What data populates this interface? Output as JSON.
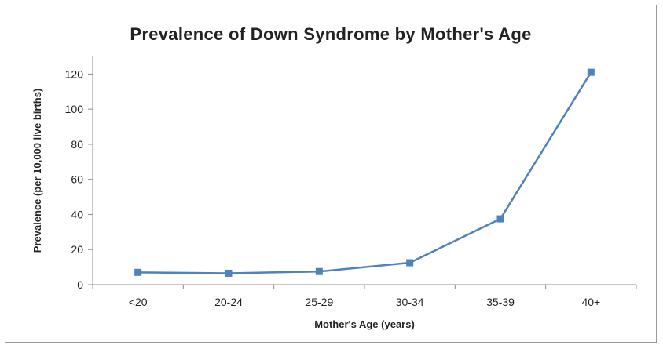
{
  "chart_data": {
    "type": "line",
    "title": "Prevalence of Down Syndrome by Mother's Age",
    "xlabel": "Mother's Age (years)",
    "ylabel": "Prevalence  (per 10,000 live births)",
    "categories": [
      "<20",
      "20-24",
      "25-29",
      "30-34",
      "35-39",
      "40+"
    ],
    "series": [
      {
        "values": [
          7,
          6.5,
          7.5,
          12.5,
          37.5,
          121
        ],
        "color": "#4f81bd"
      }
    ],
    "yticks": [
      0,
      20,
      40,
      60,
      80,
      100,
      120
    ],
    "ylim": [
      0,
      130
    ],
    "grid": false,
    "legend": "none"
  }
}
